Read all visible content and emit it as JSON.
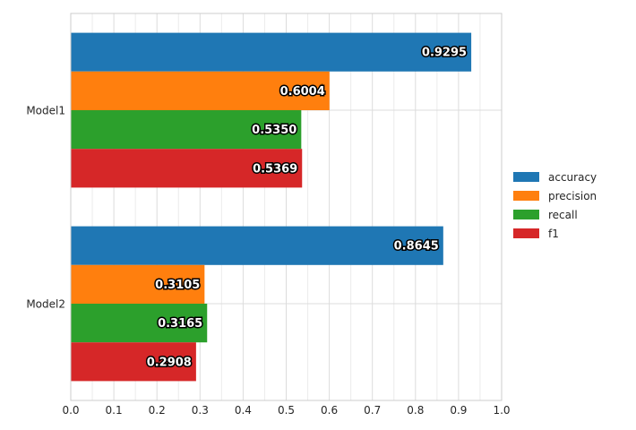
{
  "chart_data": {
    "type": "bar",
    "orientation": "horizontal",
    "categories": [
      "Model1",
      "Model2"
    ],
    "series": [
      {
        "name": "accuracy",
        "color": "#1f77b4",
        "values": [
          0.9295,
          0.8645
        ]
      },
      {
        "name": "precision",
        "color": "#ff7f0e",
        "values": [
          0.6004,
          0.3105
        ]
      },
      {
        "name": "recall",
        "color": "#2ca02c",
        "values": [
          0.535,
          0.3165
        ]
      },
      {
        "name": "f1",
        "color": "#d62728",
        "values": [
          0.5369,
          0.2908
        ]
      }
    ],
    "data_labels": [
      [
        "0.9295",
        "0.6004",
        "0.5350",
        "0.5369"
      ],
      [
        "0.8645",
        "0.3105",
        "0.3165",
        "0.2908"
      ]
    ],
    "x_ticks": [
      "0.0",
      "0.1",
      "0.2",
      "0.3",
      "0.4",
      "0.5",
      "0.6",
      "0.7",
      "0.8",
      "0.9",
      "1.0"
    ],
    "xlim": [
      0,
      1.0
    ],
    "title": "",
    "xlabel": "",
    "ylabel": "",
    "grid": true,
    "legend_position": "right"
  }
}
